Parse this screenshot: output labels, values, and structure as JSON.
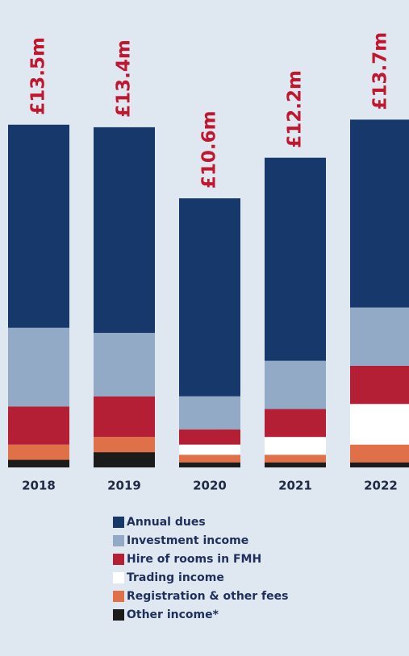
{
  "chart_data": {
    "type": "stacked-bar",
    "categories": [
      "2018",
      "2019",
      "2020",
      "2021",
      "2022"
    ],
    "series": [
      {
        "name": "Annual dues",
        "color": "#16386b",
        "values": [
          8.0,
          8.1,
          7.8,
          8.0,
          7.4
        ]
      },
      {
        "name": "Investment income",
        "color": "#93aac6",
        "values": [
          3.1,
          2.5,
          1.3,
          1.9,
          2.3
        ]
      },
      {
        "name": "Hire of rooms in FMH",
        "color": "#b51f35",
        "values": [
          1.5,
          1.6,
          0.6,
          1.1,
          1.5
        ]
      },
      {
        "name": "Trading income",
        "color": "#ffffff",
        "values": [
          0,
          0,
          0.4,
          0.7,
          1.6
        ]
      },
      {
        "name": "Registration & other fees",
        "color": "#e07048",
        "values": [
          0.6,
          0.6,
          0.3,
          0.3,
          0.7
        ]
      },
      {
        "name": "Other income*",
        "color": "#1b1b1b",
        "values": [
          0.3,
          0.6,
          0.2,
          0.2,
          0.2
        ]
      }
    ],
    "totals": {
      "values": [
        13.5,
        13.4,
        10.6,
        12.2,
        13.7
      ],
      "value_labels": [
        "£13.5m",
        "£13.4m",
        "£10.6m",
        "£12.2m",
        "£13.7m"
      ]
    }
  }
}
